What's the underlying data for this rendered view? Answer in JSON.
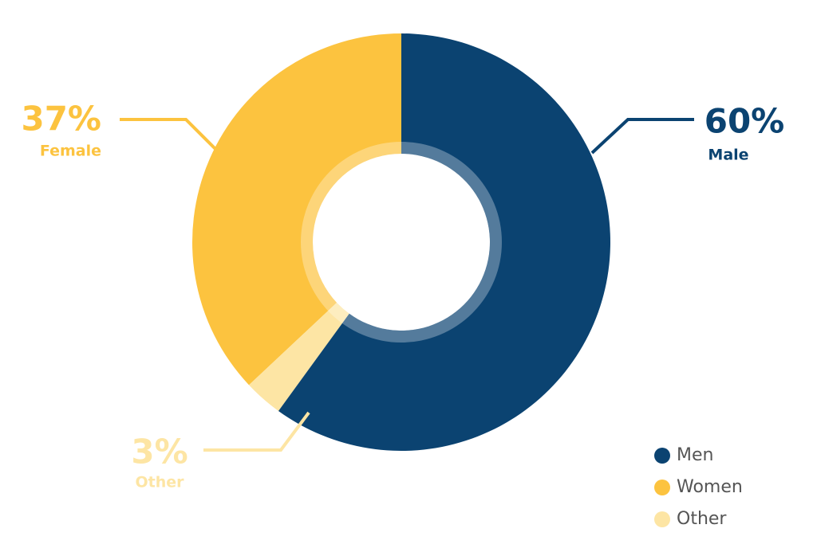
{
  "chart_data": {
    "type": "donut",
    "categories": [
      "Men",
      "Women",
      "Other"
    ],
    "values": [
      60,
      37,
      3
    ],
    "value_labels": [
      "60%",
      "37%",
      "3%"
    ],
    "slice_labels": [
      "Male",
      "Female",
      "Other"
    ],
    "colors": [
      "#0b4371",
      "#fcc33f",
      "#fde5a4"
    ],
    "legend": "bottom-right"
  }
}
